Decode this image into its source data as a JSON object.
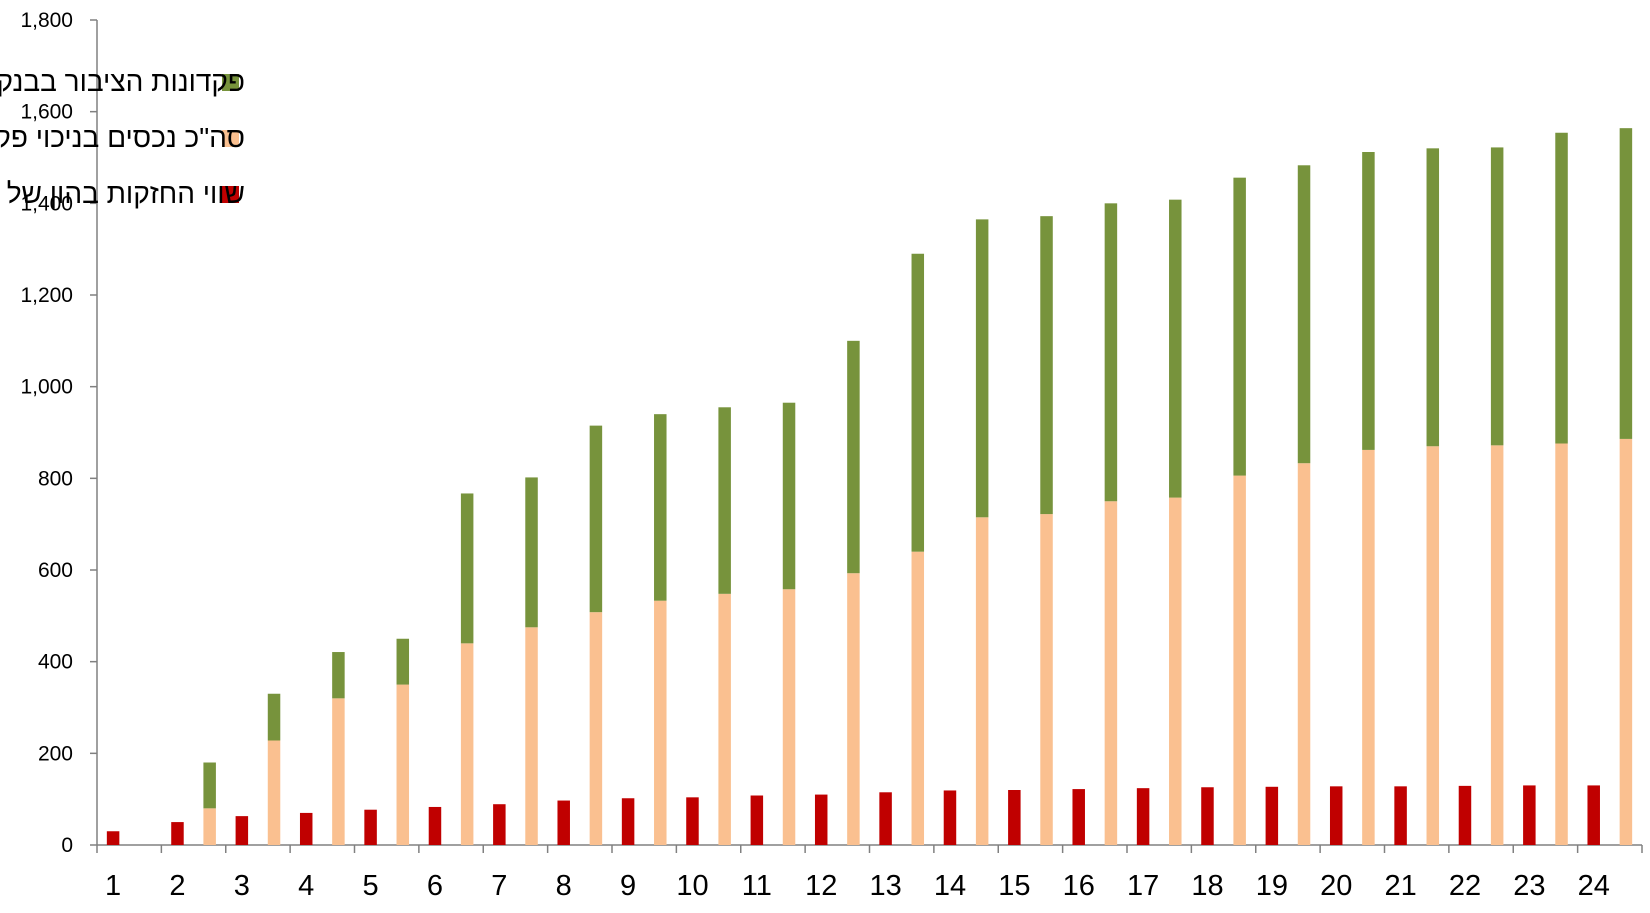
{
  "chart_data": {
    "type": "bar",
    "title": "",
    "xlabel": "",
    "ylabel": "",
    "ylim": [
      0,
      1800
    ],
    "yticks": [
      0,
      200,
      400,
      600,
      800,
      1000,
      1200,
      1400,
      1600,
      1800
    ],
    "ytick_labels": [
      "0",
      "200",
      "400",
      "600",
      "800",
      "1,000",
      "1,200",
      "1,400",
      "1,600",
      "1,800"
    ],
    "categories": [
      "1",
      "2",
      "3",
      "4",
      "5",
      "6",
      "7",
      "8",
      "9",
      "10",
      "11",
      "12",
      "13",
      "14",
      "15",
      "16",
      "17",
      "18",
      "19",
      "20",
      "21",
      "22",
      "23",
      "24"
    ],
    "grid": false,
    "legend_position": "top-left",
    "series": [
      {
        "name": "שווי החזקות בהון של כלל בעלי השליטה",
        "color": "#c00000",
        "values": [
          30,
          50,
          63,
          70,
          77,
          83,
          89,
          97,
          102,
          104,
          108,
          110,
          115,
          119,
          120,
          122,
          124,
          126,
          127,
          128,
          128,
          129,
          130,
          130
        ]
      },
      {
        "name": "סה\"כ נכסים בניכוי פקדונות הציבור בבנקים",
        "color": "#fac090",
        "stack": "assets",
        "values": [
          0,
          80,
          228,
          320,
          350,
          440,
          475,
          508,
          533,
          548,
          558,
          593,
          640,
          715,
          722,
          750,
          758,
          806,
          833,
          862,
          870,
          872,
          876,
          886
        ],
        "categories_offset": 1
      },
      {
        "name": "פקדונות הציבור בבנקים",
        "color": "#77933c",
        "stack": "assets",
        "values": [
          0,
          100,
          102,
          101,
          100,
          327,
          327,
          407,
          407,
          407,
          407,
          507,
          650,
          650,
          650,
          650,
          650,
          650,
          650,
          650,
          650,
          650,
          678,
          678
        ],
        "note": ""
      }
    ],
    "stacked_totals": [
      0,
      180,
      330,
      421,
      450,
      767,
      802,
      915,
      940,
      955,
      965,
      1100,
      1290,
      1365,
      1372,
      1400,
      1408,
      1456,
      1483,
      1512,
      1520,
      1522,
      1554,
      1564
    ]
  }
}
